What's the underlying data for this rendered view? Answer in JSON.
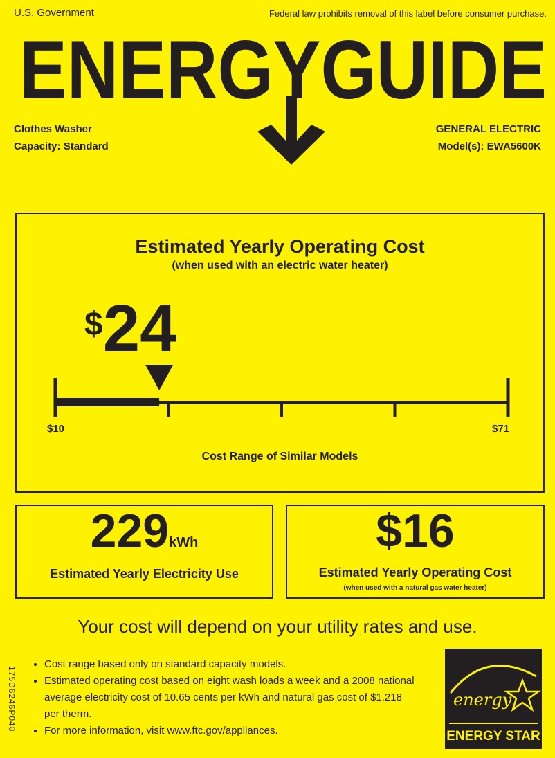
{
  "header": {
    "issuer": "U.S. Government",
    "notice": "Federal law prohibits removal of this label before consumer purchase.",
    "title": "ENERGYGUIDE",
    "product_type": "Clothes Washer",
    "capacity": "Capacity: Standard",
    "manufacturer": "GENERAL ELECTRIC",
    "model": "Model(s): EWA5600K"
  },
  "main_cost": {
    "title": "Estimated Yearly Operating Cost",
    "subtitle": "(when used with an electric water heater)",
    "currency": "$",
    "value": "24",
    "range_min_label": "$10",
    "range_max_label": "$71",
    "range_min": 10,
    "range_max": 71,
    "marker_value": 24,
    "range_caption": "Cost Range of Similar Models"
  },
  "electricity": {
    "value": "229",
    "unit": "kWh",
    "caption": "Estimated Yearly Electricity Use"
  },
  "gas_cost": {
    "value": "$16",
    "caption": "Estimated Yearly Operating Cost",
    "subcaption": "(when used with a natural gas water heater)"
  },
  "disclaimer": "Your cost will depend on your utility rates and use.",
  "notes": [
    "Cost range based only on standard capacity models.",
    "Estimated operating cost based on eight wash loads a week and a 2008 national average electricity cost of 10.65 cents per kWh and natural gas cost of $1.218 per therm.",
    "For more information, visit www.ftc.gov/appliances."
  ],
  "form_code": "175D6246P048",
  "energy_star": {
    "script": "energy",
    "label": "ENERGY STAR"
  },
  "colors": {
    "background": "#fff200",
    "ink": "#231f20"
  }
}
